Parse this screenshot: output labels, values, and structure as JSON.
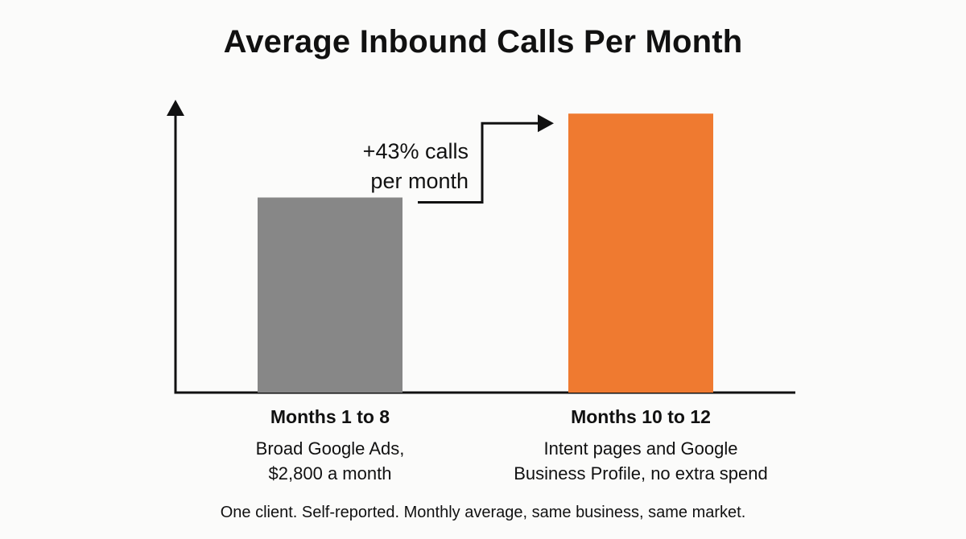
{
  "chart_data": {
    "type": "bar",
    "title": "Average Inbound Calls Per Month",
    "categories": [
      "Months 1 to 8",
      "Months 10 to 12"
    ],
    "descriptions": [
      "Broad Google Ads,\n$2,800 a month",
      "Intent pages and Google\nBusiness Profile, no extra spend"
    ],
    "values": [
      100,
      143
    ],
    "colors": [
      "#878787",
      "#ef7a30"
    ],
    "ylim": [
      0,
      160
    ],
    "xlabel": "",
    "ylabel": "",
    "grid": false,
    "annotation": "+43% calls\nper month"
  },
  "footnote": "One client. Self-reported. Monthly average, same business, same market."
}
